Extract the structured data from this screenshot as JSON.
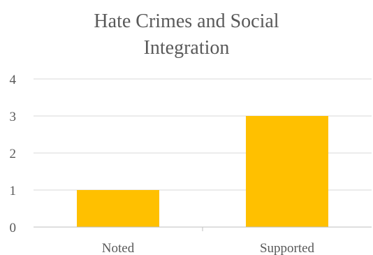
{
  "chart_data": {
    "type": "bar",
    "title": [
      "Hate Crimes and Social",
      "Integration"
    ],
    "categories": [
      "Noted",
      "Supported"
    ],
    "values": [
      1,
      3
    ],
    "ylim": [
      0,
      4
    ],
    "yticks": [
      0,
      1,
      2,
      3,
      4
    ],
    "xlabel": "",
    "ylabel": "",
    "grid": true,
    "legend": "none"
  },
  "colors": {
    "bar": "#FFC000",
    "grid": "#D9D9D9",
    "axis": "#BFBFBF",
    "text": "#595959"
  }
}
